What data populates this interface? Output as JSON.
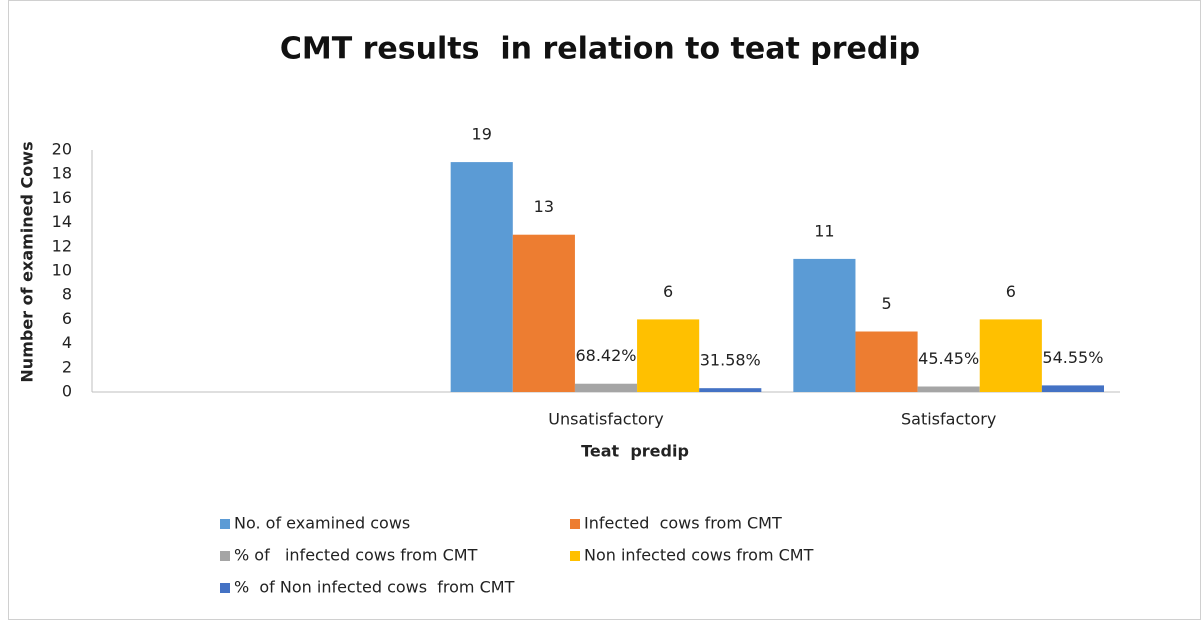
{
  "chart_data": {
    "type": "bar",
    "title": "CMT results  in relation to teat predip",
    "x_label": "Teat  predip",
    "y_label": "Number of examined Cows",
    "categories": [
      null,
      "Unsatisfactory",
      "Satisfactory"
    ],
    "series": [
      {
        "name": "No. of examined cows",
        "color": "#5b9bd5",
        "values": [
          null,
          19,
          11
        ]
      },
      {
        "name": "Infected  cows from CMT",
        "color": "#ed7d31",
        "values": [
          null,
          13,
          5
        ]
      },
      {
        "name": "% of   infected cows from CMT",
        "color": "#a5a5a5",
        "values": [
          null,
          0.6842,
          0.4545
        ],
        "value_labels": [
          null,
          "68.42%",
          "45.45%"
        ]
      },
      {
        "name": "Non infected cows from CMT",
        "color": "#ffc000",
        "values": [
          null,
          6,
          6
        ]
      },
      {
        "name": "%  of Non infected cows  from CMT",
        "color": "#4472c4",
        "values": [
          null,
          0.3158,
          0.5455
        ],
        "value_labels": [
          null,
          "31.58%",
          "54.55%"
        ]
      }
    ],
    "ylim": [
      0,
      20
    ],
    "yticks": [
      0,
      2,
      4,
      6,
      8,
      10,
      12,
      14,
      16,
      18,
      20
    ],
    "grid": false,
    "legend": "bottom"
  }
}
